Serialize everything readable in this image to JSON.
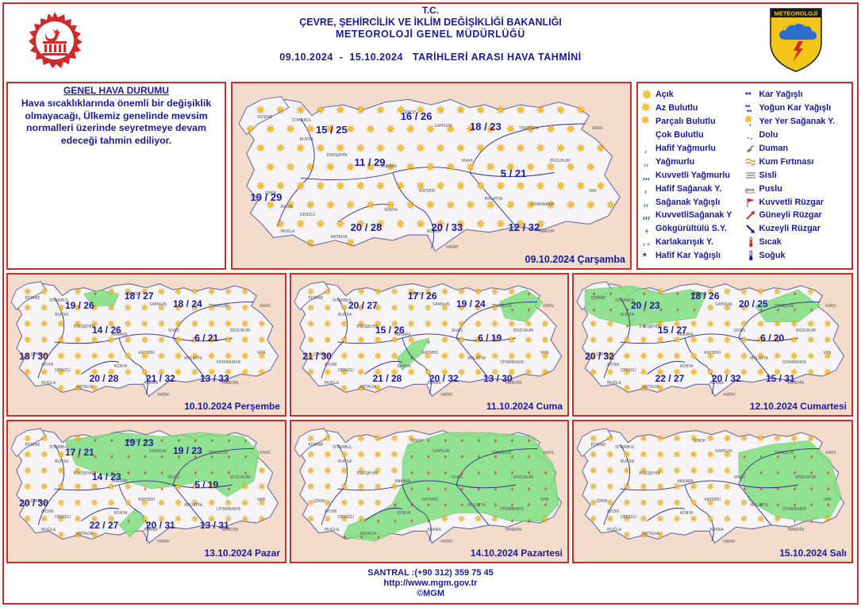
{
  "header": {
    "line1": "T.C.",
    "line2": "ÇEVRE, ŞEHİRCİLİK VE İKLİM DEĞİŞİKLİĞİ BAKANLIĞI",
    "line3": "METEOROLOJİ GENEL MÜDÜRLÜĞÜ",
    "line4": "09.10.2024  -  15.10.2024   TARİHLERİ ARASI HAVA TAHMİNİ"
  },
  "logo_right_text": "METEOROLOJİ",
  "general": {
    "title": "GENEL HAVA DURUMU",
    "body": "Hava sıcaklıklarında önemli bir değişiklik olmayacağı, Ülkemiz genelinde mevsim normalleri üzerinde seyretmeye devam edeceği tahmin ediliyor."
  },
  "legend": [
    {
      "label": "Açık",
      "icon": "sun-icon"
    },
    {
      "label": "Kar Yağışlı",
      "icon": "snow-icon"
    },
    {
      "label": "Az Bulutlu",
      "icon": "few-clouds-icon"
    },
    {
      "label": "Yoğun Kar Yağışlı",
      "icon": "heavy-snow-icon"
    },
    {
      "label": "Parçalı Bulutlu",
      "icon": "partly-cloudy-icon"
    },
    {
      "label": "Yer Yer Sağanak Y.",
      "icon": "scattered-showers-icon"
    },
    {
      "label": "Çok Bulutlu",
      "icon": "overcast-icon"
    },
    {
      "label": "Dolu",
      "icon": "hail-icon"
    },
    {
      "label": "Hafif Yağmurlu",
      "icon": "light-rain-icon"
    },
    {
      "label": "Duman",
      "icon": "smoke-icon"
    },
    {
      "label": "Yağmurlu",
      "icon": "rain-icon"
    },
    {
      "label": "Kum Fırtınası",
      "icon": "sandstorm-icon"
    },
    {
      "label": "Kuvvetli Yağmurlu",
      "icon": "heavy-rain-icon"
    },
    {
      "label": "Sisli",
      "icon": "fog-icon"
    },
    {
      "label": "Hafif Sağanak Y.",
      "icon": "light-showers-icon"
    },
    {
      "label": "Puslu",
      "icon": "haze-icon"
    },
    {
      "label": "Sağanak Yağışlı",
      "icon": "showers-icon"
    },
    {
      "label": "Kuvvetli Rüzgar",
      "icon": "strong-wind-icon"
    },
    {
      "label": "KuvvetliSağanak Y",
      "icon": "heavy-showers-icon"
    },
    {
      "label": "Güneyli Rüzgar",
      "icon": "south-wind-icon"
    },
    {
      "label": "Gökgürültülü S.Y.",
      "icon": "thunderstorm-icon"
    },
    {
      "label": "Kuzeyli Rüzgar",
      "icon": "north-wind-icon"
    },
    {
      "label": "Karlakarışık Y.",
      "icon": "sleet-icon"
    },
    {
      "label": "Sıcak",
      "icon": "hot-icon"
    },
    {
      "label": "Hafif Kar Yağışlı",
      "icon": "light-snow-icon"
    },
    {
      "label": "Soğuk",
      "icon": "cold-icon"
    }
  ],
  "days": [
    {
      "date": "09.10.2024 Çarşamba",
      "temps": [
        "15 / 25",
        "16 / 26",
        "18 / 23",
        "11 / 29",
        "5 / 21",
        "19 / 29",
        "12 / 32",
        "20 / 28",
        "20 / 33"
      ]
    },
    {
      "date": "10.10.2024 Perşembe",
      "temps": [
        "19 / 26",
        "18 / 27",
        "18 / 24",
        "14 / 26",
        "6 / 21",
        "18 / 30",
        "13 / 33",
        "20 / 28",
        "21 / 32"
      ]
    },
    {
      "date": "11.10.2024 Cuma",
      "temps": [
        "20 / 27",
        "17 / 26",
        "19 / 24",
        "15 / 26",
        "6 / 19",
        "21 / 30",
        "13 / 30",
        "21 / 28",
        "20 / 32"
      ]
    },
    {
      "date": "12.10.2024 Cumartesi",
      "temps": [
        "20 / 23",
        "18 / 26",
        "20 / 25",
        "15 / 27",
        "6 / 20",
        "20 / 32",
        "15 / 31",
        "22 / 27",
        "20 / 32"
      ]
    },
    {
      "date": "13.10.2024 Pazar",
      "temps": [
        "17 / 21",
        "19 / 23",
        "19 / 23",
        "14 / 23",
        "5 / 19",
        "20 / 30",
        "13 / 31",
        "22 / 27",
        "20 / 31"
      ]
    },
    {
      "date": "14.10.2024 Pazartesi",
      "temps": []
    },
    {
      "date": "15.10.2024 Salı",
      "temps": []
    }
  ],
  "city_labels": [
    "EDİRNE",
    "İSTANBUL",
    "BURSA",
    "ANKARA",
    "İZMİR",
    "ANTALYA",
    "KONYA",
    "SAMSUN",
    "TRABZON",
    "ERZURUM",
    "VAN",
    "SİVAS",
    "KAYSERİ",
    "ADANA",
    "MALATYA",
    "DİYARBAKIR",
    "AYDIN",
    "MUĞLA",
    "DENİZLİ",
    "ESKİŞEHİR",
    "SİNOP",
    "KARS",
    "MARDİN",
    "HATAY"
  ],
  "footer": {
    "phone": "SANTRAL :(+90 312) 359 75 45",
    "url": "http://www.mgm.gov.tr",
    "copy": "©MGM"
  },
  "colors": {
    "frame": "#d12a2a",
    "text": "#1a1aa0",
    "map_bg": "#f3dccb",
    "land": "#f6f4f6",
    "rain_area": "#7fe07f"
  }
}
